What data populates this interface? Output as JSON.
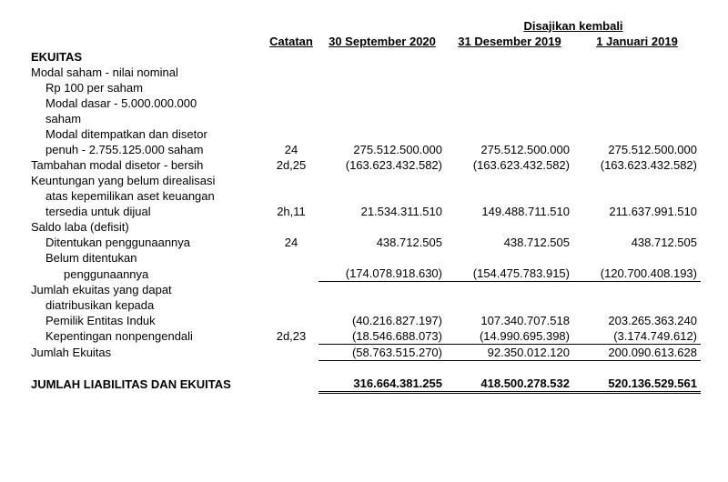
{
  "header": {
    "restated": "Disajikan kembali",
    "note": "Catatan",
    "col1": "30 September 2020",
    "col2": "31 Desember 2019",
    "col3": "1 Januari 2019"
  },
  "equity": {
    "title": "EKUITAS",
    "share_cap": "Modal saham - nilai nominal",
    "par": "Rp 100 per saham",
    "auth1": "Modal dasar - 5.000.000.000",
    "auth2": "saham",
    "issued1": "Modal ditempatkan dan disetor",
    "issued2": "penuh - 2.755.125.000 saham",
    "issued_note": "24",
    "issued_v1": "275.512.500.000",
    "issued_v2": "275.512.500.000",
    "issued_v3": "275.512.500.000",
    "apic": "Tambahan modal disetor - bersih",
    "apic_note": "2d,25",
    "apic_v1": "(163.623.432.582)",
    "apic_v2": "(163.623.432.582)",
    "apic_v3": "(163.623.432.582)",
    "gain1": "Keuntungan yang belum direalisasi",
    "gain2": "atas kepemilikan aset keuangan",
    "gain3": "tersedia untuk dijual",
    "gain_note": "2h,11",
    "gain_v1": "21.534.311.510",
    "gain_v2": "149.488.711.510",
    "gain_v3": "211.637.991.510",
    "re": "Saldo laba (defisit)",
    "appr": "Ditentukan penggunaannya",
    "appr_note": "24",
    "appr_v1": "438.712.505",
    "appr_v2": "438.712.505",
    "appr_v3": "438.712.505",
    "unappr1": "Belum ditentukan",
    "unappr2": "penggunaannya",
    "unappr_v1": "(174.078.918.630)",
    "unappr_v2": "(154.475.783.915)",
    "unappr_v3": "(120.700.408.193)",
    "attr1": "Jumlah ekuitas yang dapat",
    "attr2": "diatribusikan kepada",
    "parent": "Pemilik Entitas Induk",
    "parent_v1": "(40.216.827.197)",
    "parent_v2": "107.340.707.518",
    "parent_v3": "203.265.363.240",
    "nci": "Kepentingan nonpengendali",
    "nci_note": "2d,23",
    "nci_v1": "(18.546.688.073)",
    "nci_v2": "(14.990.695.398)",
    "nci_v3": "(3.174.749.612)",
    "total_eq": "Jumlah Ekuitas",
    "te_v1": "(58.763.515.270)",
    "te_v2": "92.350.012.120",
    "te_v3": "200.090.613.628",
    "total_le": "JUMLAH LIABILITAS DAN EKUITAS",
    "tle_v1": "316.664.381.255",
    "tle_v2": "418.500.278.532",
    "tle_v3": "520.136.529.561"
  }
}
